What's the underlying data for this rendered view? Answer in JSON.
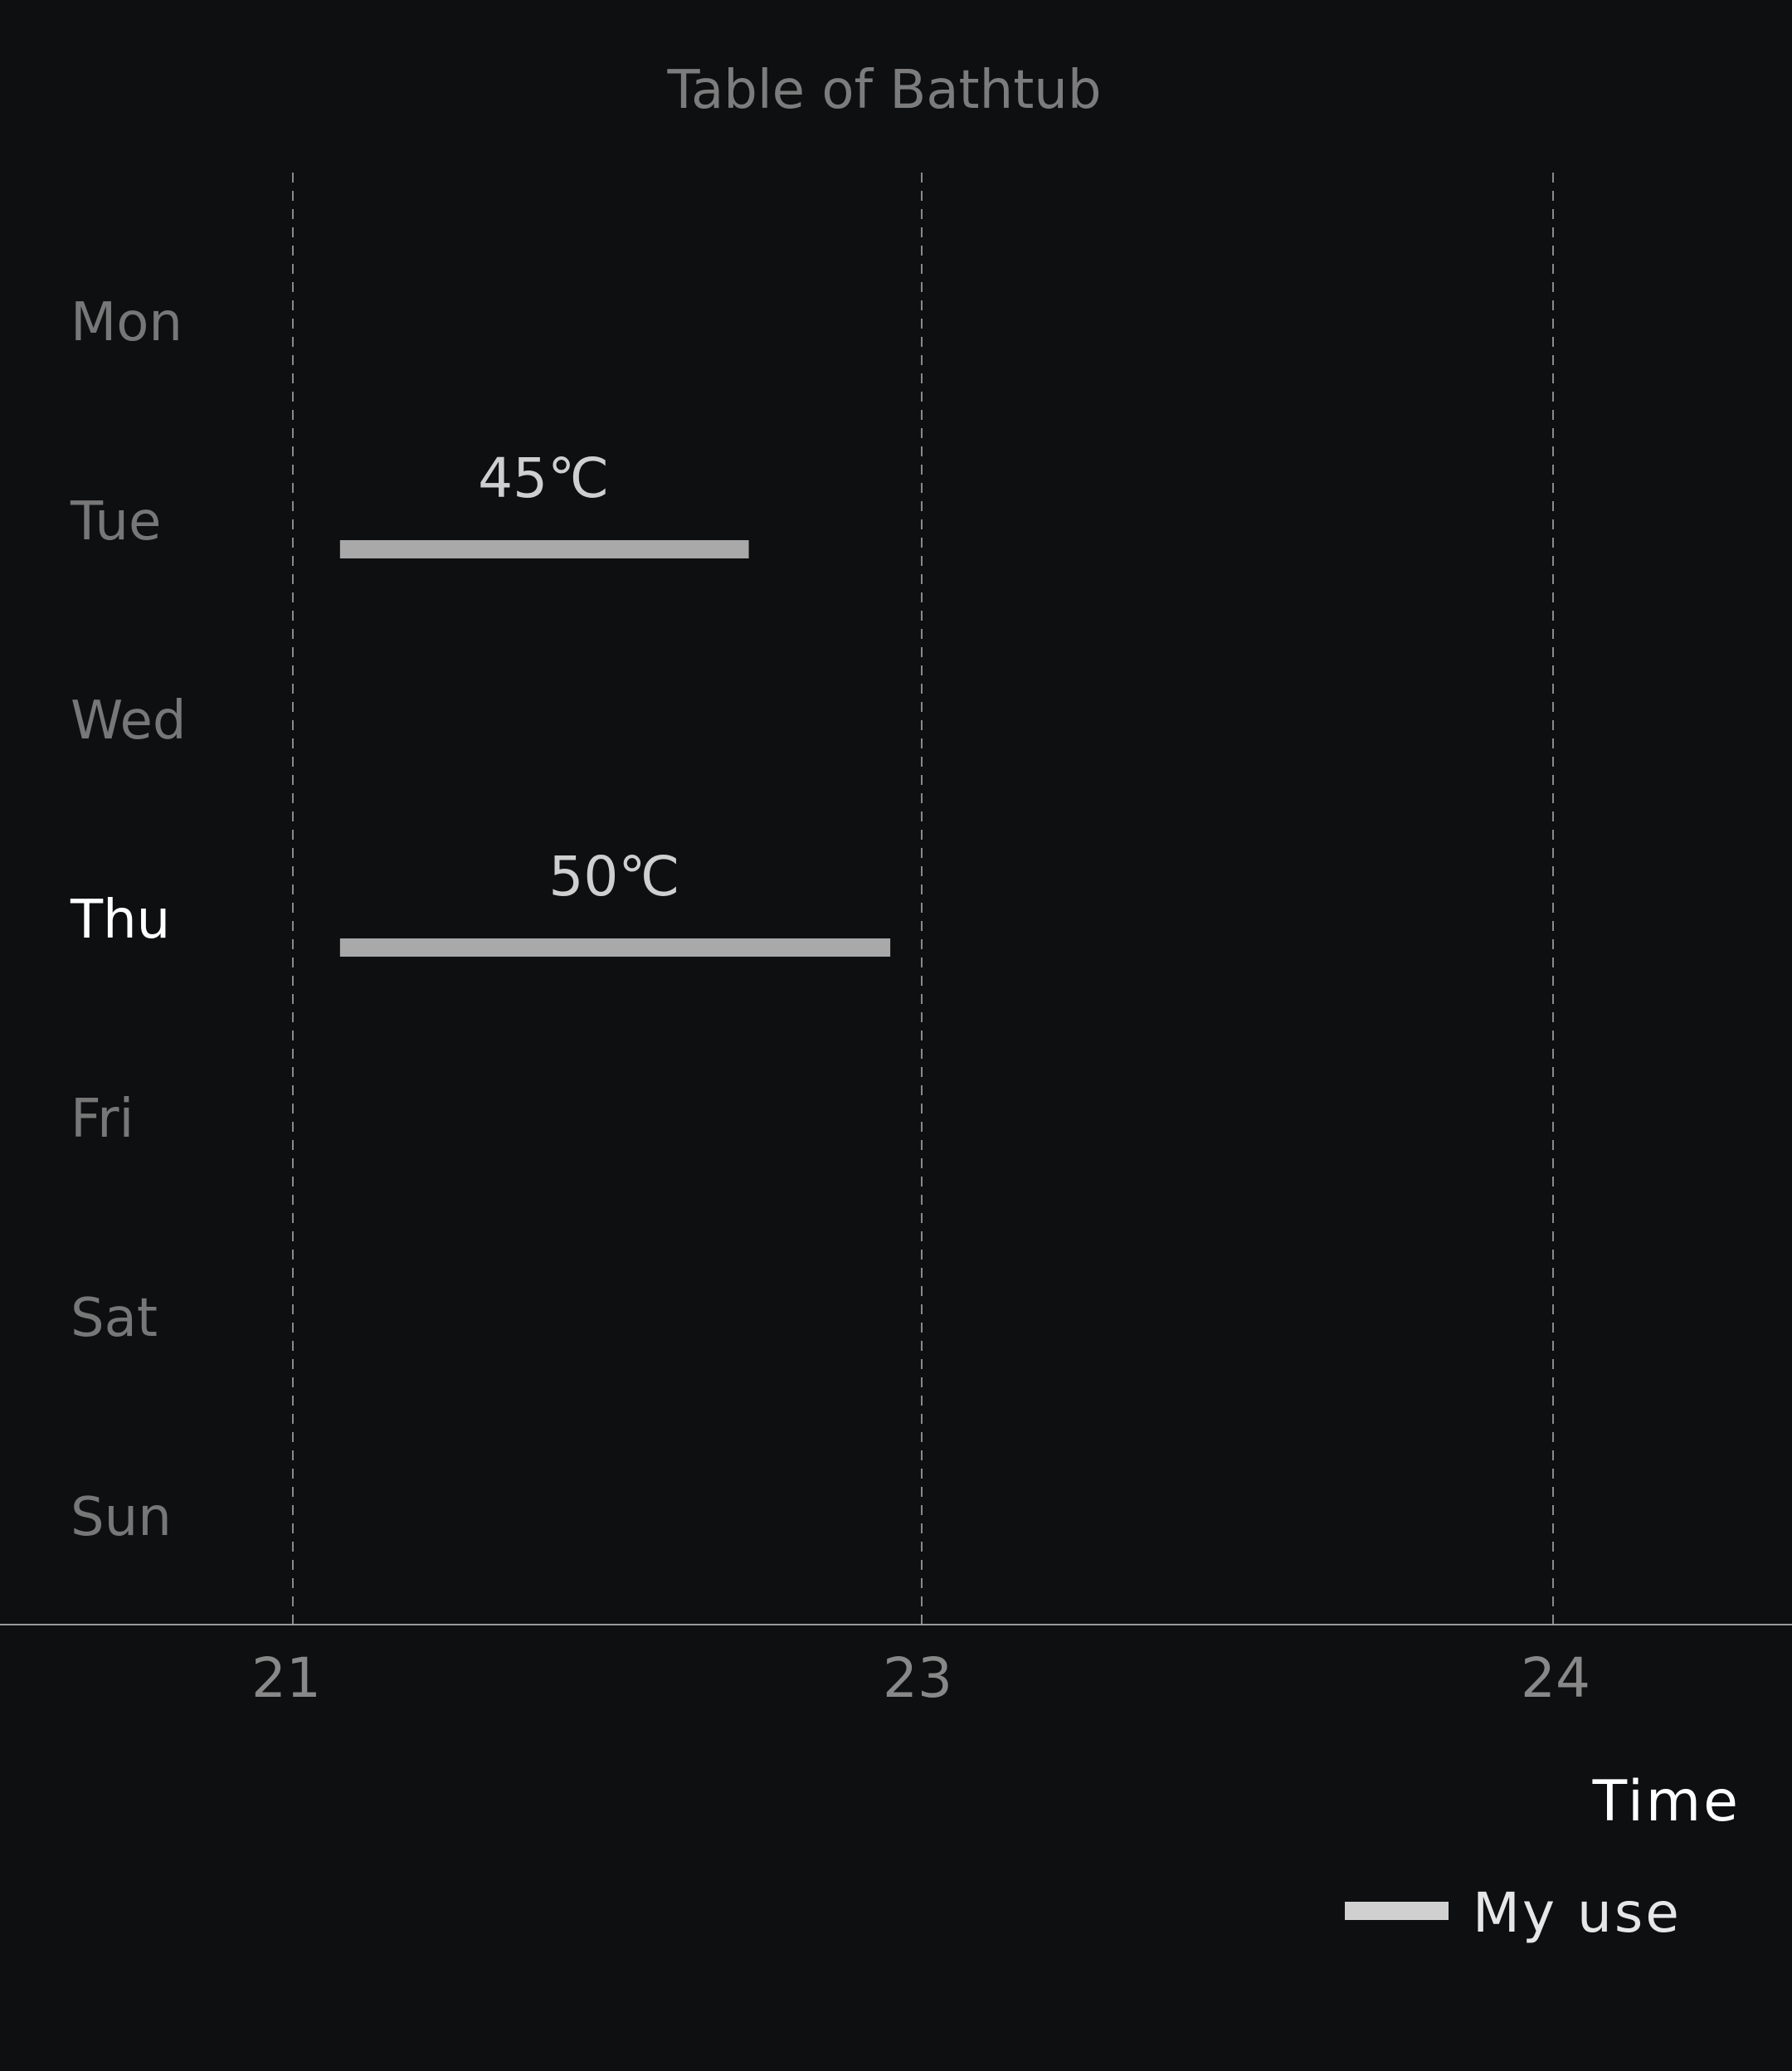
{
  "chart_data": {
    "type": "bar",
    "orientation": "horizontal",
    "title": "Table of Bathtub",
    "xlabel": "Time",
    "ylabel": "",
    "categories": [
      "Mon",
      "Tue",
      "Wed",
      "Thu",
      "Fri",
      "Sat",
      "Sun"
    ],
    "highlighted_category": "Thu",
    "x_ticks": [
      "21",
      "23",
      "24"
    ],
    "grid": "vertical dashed",
    "legend_position": "bottom-right",
    "series": [
      {
        "name": "My use",
        "color": "#a9a9a9",
        "bars": [
          {
            "category": "Tue",
            "start": 21.15,
            "end": 22.45,
            "label": "45℃"
          },
          {
            "category": "Thu",
            "start": 21.15,
            "end": 22.9,
            "label": "50℃"
          }
        ]
      }
    ]
  },
  "colors": {
    "background": "#0e0f11",
    "bar": "#a9a9a9",
    "legend_swatch": "#d0d0d0"
  }
}
